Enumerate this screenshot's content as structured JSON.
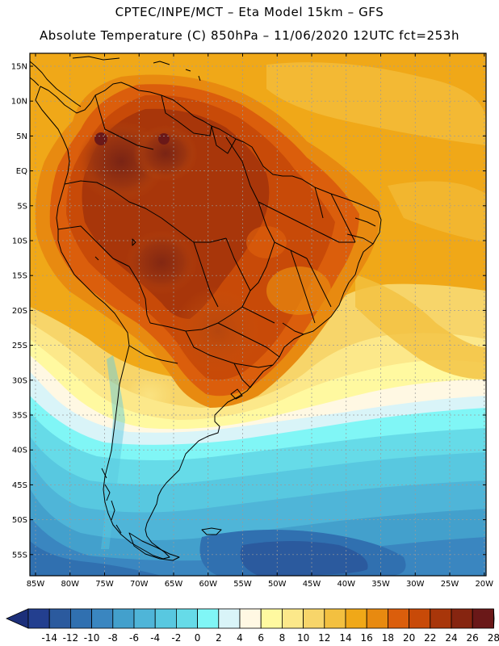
{
  "header": {
    "line1": "CPTEC/INPE/MCT –  Eta Model 15km – GFS",
    "line2": "Absolute Temperature (C) 850hPa – 11/06/2020 12UTC fct=253h"
  },
  "map": {
    "lat_labels": [
      "15N",
      "10N",
      "5N",
      "EQ",
      "5S",
      "10S",
      "15S",
      "20S",
      "25S",
      "30S",
      "35S",
      "40S",
      "45S",
      "50S",
      "55S"
    ],
    "lon_labels": [
      "85W",
      "80W",
      "75W",
      "70W",
      "65W",
      "60W",
      "55W",
      "50W",
      "45W",
      "40W",
      "35W",
      "30W",
      "25W",
      "20W"
    ]
  },
  "colorbar": {
    "colors": [
      "#233f8f",
      "#2b5a9e",
      "#3070b0",
      "#3a86c0",
      "#43a0cc",
      "#4fb5d8",
      "#58c8e0",
      "#66dbe8",
      "#80f6f6",
      "#d9f4f8",
      "#fff8e3",
      "#fff9a0",
      "#fce88a",
      "#f7d56a",
      "#f3c040",
      "#f0a818",
      "#e88a10",
      "#db5e0c",
      "#c84a08",
      "#a8360a",
      "#862510",
      "#6a1818"
    ],
    "labels": [
      "-14",
      "-12",
      "-10",
      "-8",
      "-6",
      "-4",
      "-2",
      "0",
      "2",
      "4",
      "6",
      "8",
      "10",
      "12",
      "14",
      "16",
      "18",
      "20",
      "22",
      "24",
      "26",
      "28"
    ]
  }
}
